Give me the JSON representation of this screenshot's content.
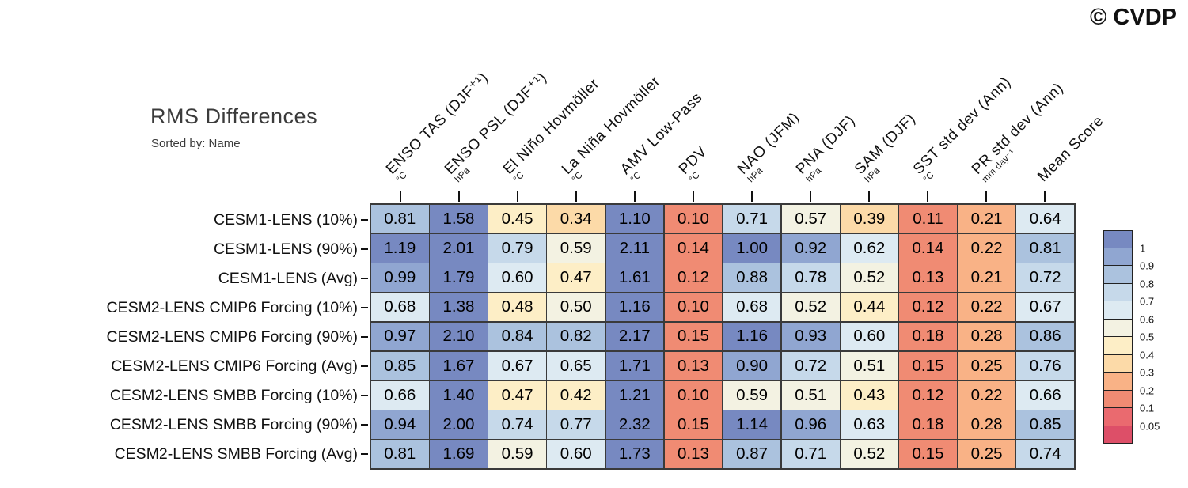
{
  "header": {
    "copyright": "© CVDP"
  },
  "title": {
    "text": "RMS Differences",
    "subtitle": "Sorted by: Name"
  },
  "chart_data": {
    "type": "heatmap",
    "title": "RMS Differences",
    "subtitle": "Sorted by: Name",
    "xlabel": "",
    "ylabel": "",
    "legend_position": "right",
    "columns": [
      {
        "label": "ENSO TAS (DJF⁺¹)",
        "unit": "°C"
      },
      {
        "label": "ENSO PSL (DJF⁺¹)",
        "unit": "hPa"
      },
      {
        "label": "El Niño Hovmöller",
        "unit": "°C"
      },
      {
        "label": "La Niña Hovmöller",
        "unit": "°C"
      },
      {
        "label": "AMV Low-Pass",
        "unit": "°C"
      },
      {
        "label": "PDV",
        "unit": "°C"
      },
      {
        "label": "NAO (JFM)",
        "unit": "hPa"
      },
      {
        "label": "PNA (DJF)",
        "unit": "hPa"
      },
      {
        "label": "SAM (DJF)",
        "unit": "hPa"
      },
      {
        "label": "SST std dev (Ann)",
        "unit": "°C"
      },
      {
        "label": "PR std dev (Ann)",
        "unit": "mm day⁻¹"
      },
      {
        "label": "Mean Score",
        "unit": ""
      }
    ],
    "rows": [
      {
        "label": "CESM1-LENS (10%)",
        "values": [
          0.81,
          1.58,
          0.45,
          0.34,
          1.1,
          0.1,
          0.71,
          0.57,
          0.39,
          0.11,
          0.21,
          0.64
        ]
      },
      {
        "label": "CESM1-LENS (90%)",
        "values": [
          1.19,
          2.01,
          0.79,
          0.59,
          2.11,
          0.14,
          1.0,
          0.92,
          0.62,
          0.14,
          0.22,
          0.81
        ]
      },
      {
        "label": "CESM1-LENS (Avg)",
        "values": [
          0.99,
          1.79,
          0.6,
          0.47,
          1.61,
          0.12,
          0.88,
          0.78,
          0.52,
          0.13,
          0.21,
          0.72
        ]
      },
      {
        "label": "CESM2-LENS CMIP6 Forcing (10%)",
        "values": [
          0.68,
          1.38,
          0.48,
          0.5,
          1.16,
          0.1,
          0.68,
          0.52,
          0.44,
          0.12,
          0.22,
          0.67
        ]
      },
      {
        "label": "CESM2-LENS CMIP6 Forcing (90%)",
        "values": [
          0.97,
          2.1,
          0.84,
          0.82,
          2.17,
          0.15,
          1.16,
          0.93,
          0.6,
          0.18,
          0.28,
          0.86
        ]
      },
      {
        "label": "CESM2-LENS CMIP6 Forcing (Avg)",
        "values": [
          0.85,
          1.67,
          0.67,
          0.65,
          1.71,
          0.13,
          0.9,
          0.72,
          0.51,
          0.15,
          0.25,
          0.76
        ]
      },
      {
        "label": "CESM2-LENS SMBB Forcing (10%)",
        "values": [
          0.66,
          1.4,
          0.47,
          0.42,
          1.21,
          0.1,
          0.59,
          0.51,
          0.43,
          0.12,
          0.22,
          0.66
        ]
      },
      {
        "label": "CESM2-LENS SMBB Forcing (90%)",
        "values": [
          0.94,
          2.0,
          0.74,
          0.77,
          2.32,
          0.15,
          1.14,
          0.96,
          0.63,
          0.18,
          0.28,
          0.85
        ]
      },
      {
        "label": "CESM2-LENS SMBB Forcing (Avg)",
        "values": [
          0.81,
          1.69,
          0.59,
          0.6,
          1.73,
          0.13,
          0.87,
          0.71,
          0.52,
          0.15,
          0.25,
          0.74
        ]
      }
    ],
    "legend": {
      "labels": [
        "1",
        "0.9",
        "0.8",
        "0.7",
        "0.6",
        "0.5",
        "0.4",
        "0.3",
        "0.2",
        "0.1",
        "0.05"
      ],
      "thresholds": [
        1,
        0.9,
        0.8,
        0.7,
        0.6,
        0.5,
        0.4,
        0.3,
        0.2,
        0.1,
        0.05
      ],
      "colors": [
        "#7789c1",
        "#90a6d1",
        "#abc2de",
        "#c6d9ea",
        "#ddeaf2",
        "#f3f2e2",
        "#fdeec6",
        "#fcdaa8",
        "#f9b286",
        "#f08b73",
        "#ea6a6f",
        "#dd4f68"
      ]
    }
  }
}
